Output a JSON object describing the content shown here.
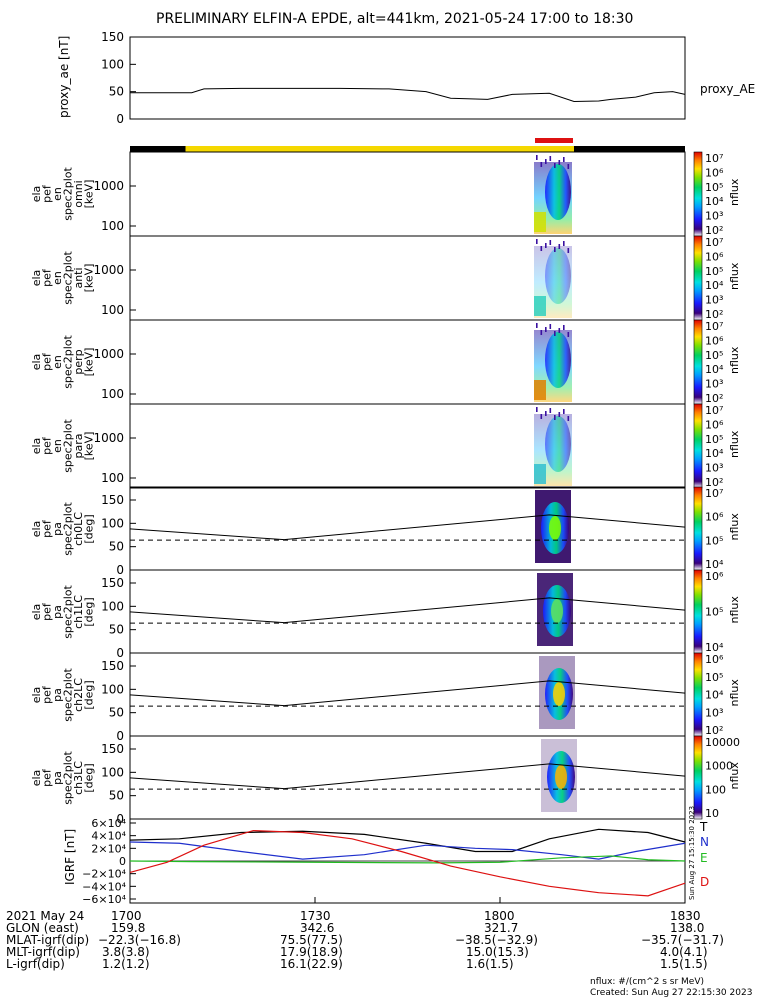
{
  "title": "PRELIMINARY ELFIN-A EPDE, alt=441km, 2021-05-24 17:00 to 18:30",
  "proxy": {
    "panel_label": "proxy_ae [nT]",
    "legend": "proxy_AE",
    "ylim": [
      0,
      150
    ],
    "yticks": [
      "150",
      "100",
      "50",
      "0"
    ]
  },
  "spec_panels": [
    {
      "label_lines": [
        "ela",
        "pef",
        "en",
        "spec2plot",
        "omni",
        "[keV]"
      ],
      "yticks": [
        "1000",
        "100"
      ],
      "cbar_ticks": [
        "10⁷",
        "10⁶",
        "10⁵",
        "10⁴",
        "10³",
        "10²"
      ],
      "cbar_label": "nflux"
    },
    {
      "label_lines": [
        "ela",
        "pef",
        "en",
        "spec2plot",
        "anti",
        "[keV]"
      ],
      "yticks": [
        "1000",
        "100"
      ],
      "cbar_ticks": [
        "10⁷",
        "10⁶",
        "10⁵",
        "10⁴",
        "10³",
        "10²"
      ],
      "cbar_label": "nflux"
    },
    {
      "label_lines": [
        "ela",
        "pef",
        "en",
        "spec2plot",
        "perp",
        "[keV]"
      ],
      "yticks": [
        "1000",
        "100"
      ],
      "cbar_ticks": [
        "10⁷",
        "10⁶",
        "10⁵",
        "10⁴",
        "10³",
        "10²"
      ],
      "cbar_label": "nflux"
    },
    {
      "label_lines": [
        "ela",
        "pef",
        "en",
        "spec2plot",
        "para",
        "[keV]"
      ],
      "yticks": [
        "1000",
        "100"
      ],
      "cbar_ticks": [
        "10⁷",
        "10⁶",
        "10⁵",
        "10⁴",
        "10³",
        "10²"
      ],
      "cbar_label": "nflux"
    }
  ],
  "pa_panels": [
    {
      "label_lines": [
        "ela",
        "pef",
        "pa",
        "spec2plot",
        "ch0LC",
        "[deg]"
      ],
      "yticks": [
        "150",
        "100",
        "50",
        "0"
      ],
      "cbar_ticks": [
        "10⁷",
        "10⁶",
        "10⁵",
        "10⁴"
      ],
      "cbar_label": "nflux"
    },
    {
      "label_lines": [
        "ela",
        "pef",
        "pa",
        "spec2plot",
        "ch1LC",
        "[deg]"
      ],
      "yticks": [
        "150",
        "100",
        "50",
        "0"
      ],
      "cbar_ticks": [
        "10⁶",
        "10⁵",
        "10⁴"
      ],
      "cbar_label": "nflux"
    },
    {
      "label_lines": [
        "ela",
        "pef",
        "pa",
        "spec2plot",
        "ch2LC",
        "[deg]"
      ],
      "yticks": [
        "150",
        "100",
        "50",
        "0"
      ],
      "cbar_ticks": [
        "10⁶",
        "10⁵",
        "10⁴",
        "10³",
        "10²"
      ],
      "cbar_label": "nflux"
    },
    {
      "label_lines": [
        "ela",
        "pef",
        "pa",
        "spec2plot",
        "ch3LC",
        "[deg]"
      ],
      "yticks": [
        "150",
        "100",
        "50",
        "0"
      ],
      "cbar_ticks": [
        "10000",
        "1000",
        "100",
        "10"
      ],
      "cbar_label": "nflux"
    }
  ],
  "igrf": {
    "panel_label": "IGRF [nT]",
    "yticks": [
      "6×10⁴",
      "4×10⁴",
      "2×10⁴",
      "0",
      "−2×10⁴",
      "−4×10⁴",
      "−6×10⁴"
    ],
    "legend": [
      {
        "name": "T",
        "color": "#000000"
      },
      {
        "name": "N",
        "color": "#1f2fcc"
      },
      {
        "name": "E",
        "color": "#22bb22"
      },
      {
        "name": "D",
        "color": "#dd1111"
      }
    ],
    "stamp": "Sun Aug 27 15:15:30 2023"
  },
  "footer": {
    "rows": [
      {
        "label": "2021 May 24",
        "values": [
          "1700",
          "1730",
          "1800",
          "1830"
        ]
      },
      {
        "label": "GLON (east)",
        "values": [
          "159.8",
          "342.6",
          "321.7",
          "138.0"
        ]
      },
      {
        "label": "MLAT-igrf(dip)",
        "values": [
          "−22.3(−16.8)",
          "75.5(77.5)",
          "−38.5(−32.9)",
          "−35.7(−31.7)"
        ]
      },
      {
        "label": "MLT-igrf(dip)",
        "values": [
          "3.8(3.8)",
          "17.9(18.9)",
          "15.0(15.3)",
          "4.0(4.1)"
        ]
      },
      {
        "label": "L-igrf(dip)",
        "values": [
          "1.2(1.2)",
          "16.1(22.9)",
          "1.6(1.5)",
          "1.5(1.5)"
        ]
      }
    ],
    "units_note": "nflux: #/(cm^2 s sr MeV)",
    "created": "Created: Sun Aug 27 22:15:30 2023"
  },
  "colors": {
    "science_bar": "#f5d800",
    "no_data_bar": "#000000",
    "interval_bar": "#dd1111",
    "colorbar": [
      "#ffffff",
      "#3a007a",
      "#1a1aff",
      "#00a0ff",
      "#00e0e0",
      "#00d060",
      "#7fe000",
      "#ffe000",
      "#ff8000",
      "#e00000"
    ]
  },
  "chart_data": [
    {
      "type": "line",
      "name": "proxy_ae",
      "xlim": [
        0,
        90
      ],
      "ylim": [
        0,
        150
      ],
      "x": [
        0,
        10,
        12,
        18,
        26,
        34,
        42,
        48,
        52,
        58,
        62,
        68,
        72,
        76,
        78,
        82,
        85,
        88,
        90
      ],
      "y": [
        48,
        48,
        55,
        56,
        56,
        56,
        55,
        50,
        38,
        36,
        45,
        47,
        32,
        33,
        36,
        40,
        48,
        50,
        45
      ]
    },
    {
      "type": "heatmap",
      "name": "pa_model_line",
      "xlim": [
        0,
        90
      ],
      "x": [
        0,
        25,
        68,
        90
      ],
      "solid": [
        88,
        65,
        118,
        92
      ],
      "dashed": [
        64,
        64,
        64,
        64
      ]
    },
    {
      "type": "line",
      "name": "igrf",
      "xlim": [
        0,
        90
      ],
      "ylim": [
        -60000,
        60000
      ],
      "series": [
        {
          "name": "T",
          "x": [
            0,
            8,
            18,
            28,
            38,
            48,
            56,
            62,
            68,
            76,
            84,
            90
          ],
          "y": [
            33000,
            35000,
            45000,
            47000,
            42000,
            28000,
            15000,
            15000,
            35000,
            50000,
            45000,
            30000
          ]
        },
        {
          "name": "N",
          "x": [
            0,
            8,
            18,
            28,
            38,
            48,
            56,
            62,
            70,
            76,
            82,
            90
          ],
          "y": [
            30000,
            28000,
            15000,
            3000,
            10000,
            25000,
            20000,
            18000,
            10000,
            3000,
            15000,
            28000
          ]
        },
        {
          "name": "E",
          "x": [
            0,
            10,
            30,
            50,
            60,
            70,
            78,
            84,
            90
          ],
          "y": [
            0,
            -1000,
            -2000,
            -3000,
            -2000,
            5000,
            8000,
            2000,
            0
          ]
        },
        {
          "name": "D",
          "x": [
            0,
            6,
            12,
            20,
            28,
            36,
            44,
            52,
            60,
            68,
            76,
            84,
            90
          ],
          "y": [
            -18000,
            -2000,
            25000,
            48000,
            45000,
            35000,
            15000,
            -8000,
            -25000,
            -40000,
            -50000,
            -55000,
            -35000
          ]
        }
      ]
    }
  ]
}
